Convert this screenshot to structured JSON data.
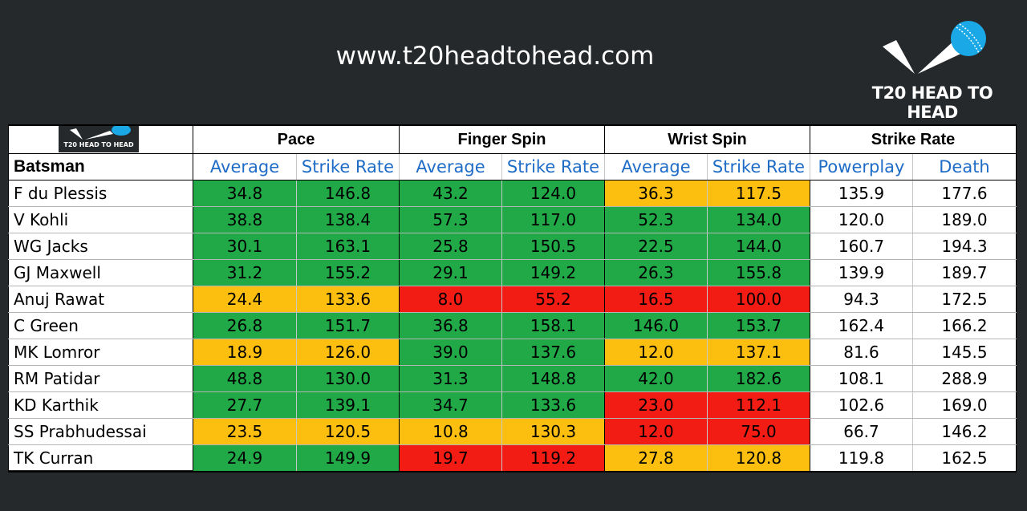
{
  "header": {
    "site_url": "www.t20headtohead.com",
    "brand_text": "T20 HEAD TO HEAD",
    "logo_icon": "cricket-ball-icon",
    "mini_logo_text": "T20 HEAD TO HEAD"
  },
  "colors": {
    "background": "#25292c",
    "green": "#20a946",
    "yellow": "#fdbf0f",
    "red": "#f21c14",
    "subheader_blue": "#1f6cc7",
    "ball_blue": "#1aa9e6"
  },
  "table": {
    "groups": [
      "Pace",
      "Finger Spin",
      "Wrist Spin",
      "Strike Rate"
    ],
    "batsman_label": "Batsman",
    "subheaders": [
      "Average",
      "Strike Rate",
      "Average",
      "Strike Rate",
      "Average",
      "Strike Rate",
      "Powerplay",
      "Death"
    ],
    "rows": [
      {
        "name": "F du Plessis",
        "values": [
          "34.8",
          "146.8",
          "43.2",
          "124.0",
          "36.3",
          "117.5",
          "135.9",
          "177.6"
        ],
        "colors": [
          "g",
          "g",
          "g",
          "g",
          "y",
          "y",
          "w",
          "w"
        ]
      },
      {
        "name": "V Kohli",
        "values": [
          "38.8",
          "138.4",
          "57.3",
          "117.0",
          "52.3",
          "134.0",
          "120.0",
          "189.0"
        ],
        "colors": [
          "g",
          "g",
          "g",
          "g",
          "g",
          "g",
          "w",
          "w"
        ]
      },
      {
        "name": "WG Jacks",
        "values": [
          "30.1",
          "163.1",
          "25.8",
          "150.5",
          "22.5",
          "144.0",
          "160.7",
          "194.3"
        ],
        "colors": [
          "g",
          "g",
          "g",
          "g",
          "g",
          "g",
          "w",
          "w"
        ]
      },
      {
        "name": "GJ Maxwell",
        "values": [
          "31.2",
          "155.2",
          "29.1",
          "149.2",
          "26.3",
          "155.8",
          "139.9",
          "189.7"
        ],
        "colors": [
          "g",
          "g",
          "g",
          "g",
          "g",
          "g",
          "w",
          "w"
        ]
      },
      {
        "name": "Anuj Rawat",
        "values": [
          "24.4",
          "133.6",
          "8.0",
          "55.2",
          "16.5",
          "100.0",
          "94.3",
          "172.5"
        ],
        "colors": [
          "y",
          "y",
          "r",
          "r",
          "r",
          "r",
          "w",
          "w"
        ]
      },
      {
        "name": "C Green",
        "values": [
          "26.8",
          "151.7",
          "36.8",
          "158.1",
          "146.0",
          "153.7",
          "162.4",
          "166.2"
        ],
        "colors": [
          "g",
          "g",
          "g",
          "g",
          "g",
          "g",
          "w",
          "w"
        ]
      },
      {
        "name": "MK Lomror",
        "values": [
          "18.9",
          "126.0",
          "39.0",
          "137.6",
          "12.0",
          "137.1",
          "81.6",
          "145.5"
        ],
        "colors": [
          "y",
          "y",
          "g",
          "g",
          "y",
          "y",
          "w",
          "w"
        ]
      },
      {
        "name": "RM Patidar",
        "values": [
          "48.8",
          "130.0",
          "31.3",
          "148.8",
          "42.0",
          "182.6",
          "108.1",
          "288.9"
        ],
        "colors": [
          "g",
          "g",
          "g",
          "g",
          "g",
          "g",
          "w",
          "w"
        ]
      },
      {
        "name": "KD Karthik",
        "values": [
          "27.7",
          "139.1",
          "34.7",
          "133.6",
          "23.0",
          "112.1",
          "102.6",
          "169.0"
        ],
        "colors": [
          "g",
          "g",
          "g",
          "g",
          "r",
          "r",
          "w",
          "w"
        ]
      },
      {
        "name": "SS Prabhudessai",
        "values": [
          "23.5",
          "120.5",
          "10.8",
          "130.3",
          "12.0",
          "75.0",
          "66.7",
          "146.2"
        ],
        "colors": [
          "y",
          "y",
          "y",
          "y",
          "r",
          "r",
          "w",
          "w"
        ]
      },
      {
        "name": "TK Curran",
        "values": [
          "24.9",
          "149.9",
          "19.7",
          "119.2",
          "27.8",
          "120.8",
          "119.8",
          "162.5"
        ],
        "colors": [
          "g",
          "g",
          "r",
          "r",
          "y",
          "y",
          "w",
          "w"
        ]
      }
    ]
  }
}
